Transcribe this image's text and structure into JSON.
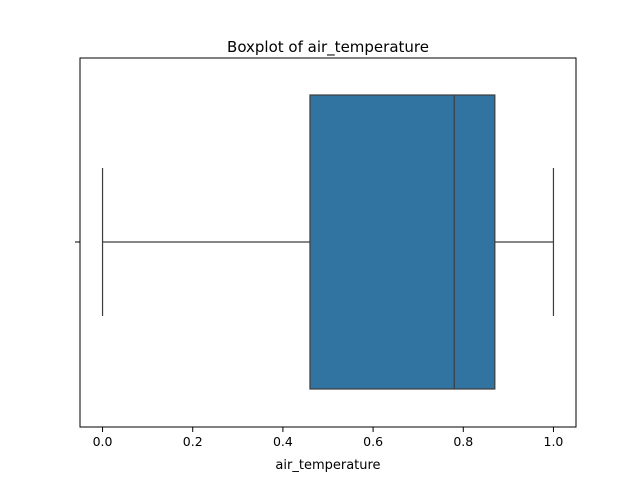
{
  "chart_data": {
    "type": "boxplot",
    "title": "Boxplot of air_temperature",
    "xlabel": "air_temperature",
    "ylabel": "",
    "orientation": "horizontal",
    "xlim": [
      -0.05,
      1.05
    ],
    "xticks": [
      0.0,
      0.2,
      0.4,
      0.6,
      0.8,
      1.0
    ],
    "xtick_labels": [
      "0.0",
      "0.2",
      "0.4",
      "0.6",
      "0.8",
      "1.0"
    ],
    "grid": false,
    "series": [
      {
        "min": 0.0,
        "q1": 0.46,
        "median": 0.78,
        "q3": 0.87,
        "max": 1.0,
        "color": "#3274a1"
      }
    ]
  }
}
